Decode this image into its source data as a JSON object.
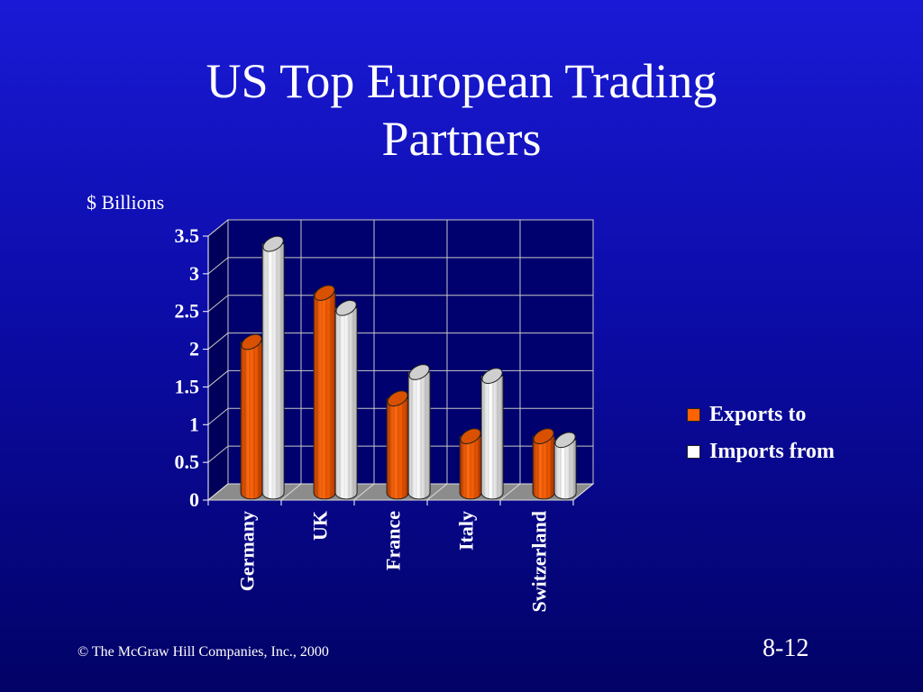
{
  "slide": {
    "title_line1": "US Top European Trading",
    "title_line2": "Partners",
    "footer": "© The McGraw Hill Companies, Inc., 2000",
    "page_number": "8-12"
  },
  "chart_data": {
    "type": "bar",
    "ylabel": "$ Billions",
    "categories": [
      "Germany",
      "UK",
      "France",
      "Italy",
      "Switzerland"
    ],
    "series": [
      {
        "name": "Exports to",
        "values": [
          2.0,
          2.65,
          1.25,
          0.75,
          0.75
        ],
        "color": "#ff6200"
      },
      {
        "name": "Imports from",
        "values": [
          3.3,
          2.45,
          1.6,
          1.55,
          0.7
        ],
        "color": "#ffffff"
      }
    ],
    "ylim": [
      0,
      3.5
    ],
    "yticks": [
      "0",
      "0.5",
      "1",
      "1.5",
      "2",
      "2.5",
      "3",
      "3.5"
    ],
    "grid": true,
    "legend_position": "right",
    "colors": {
      "floor": "#8c8c8c",
      "wall": "#00006e",
      "gridline": "#c8c8c8"
    }
  }
}
